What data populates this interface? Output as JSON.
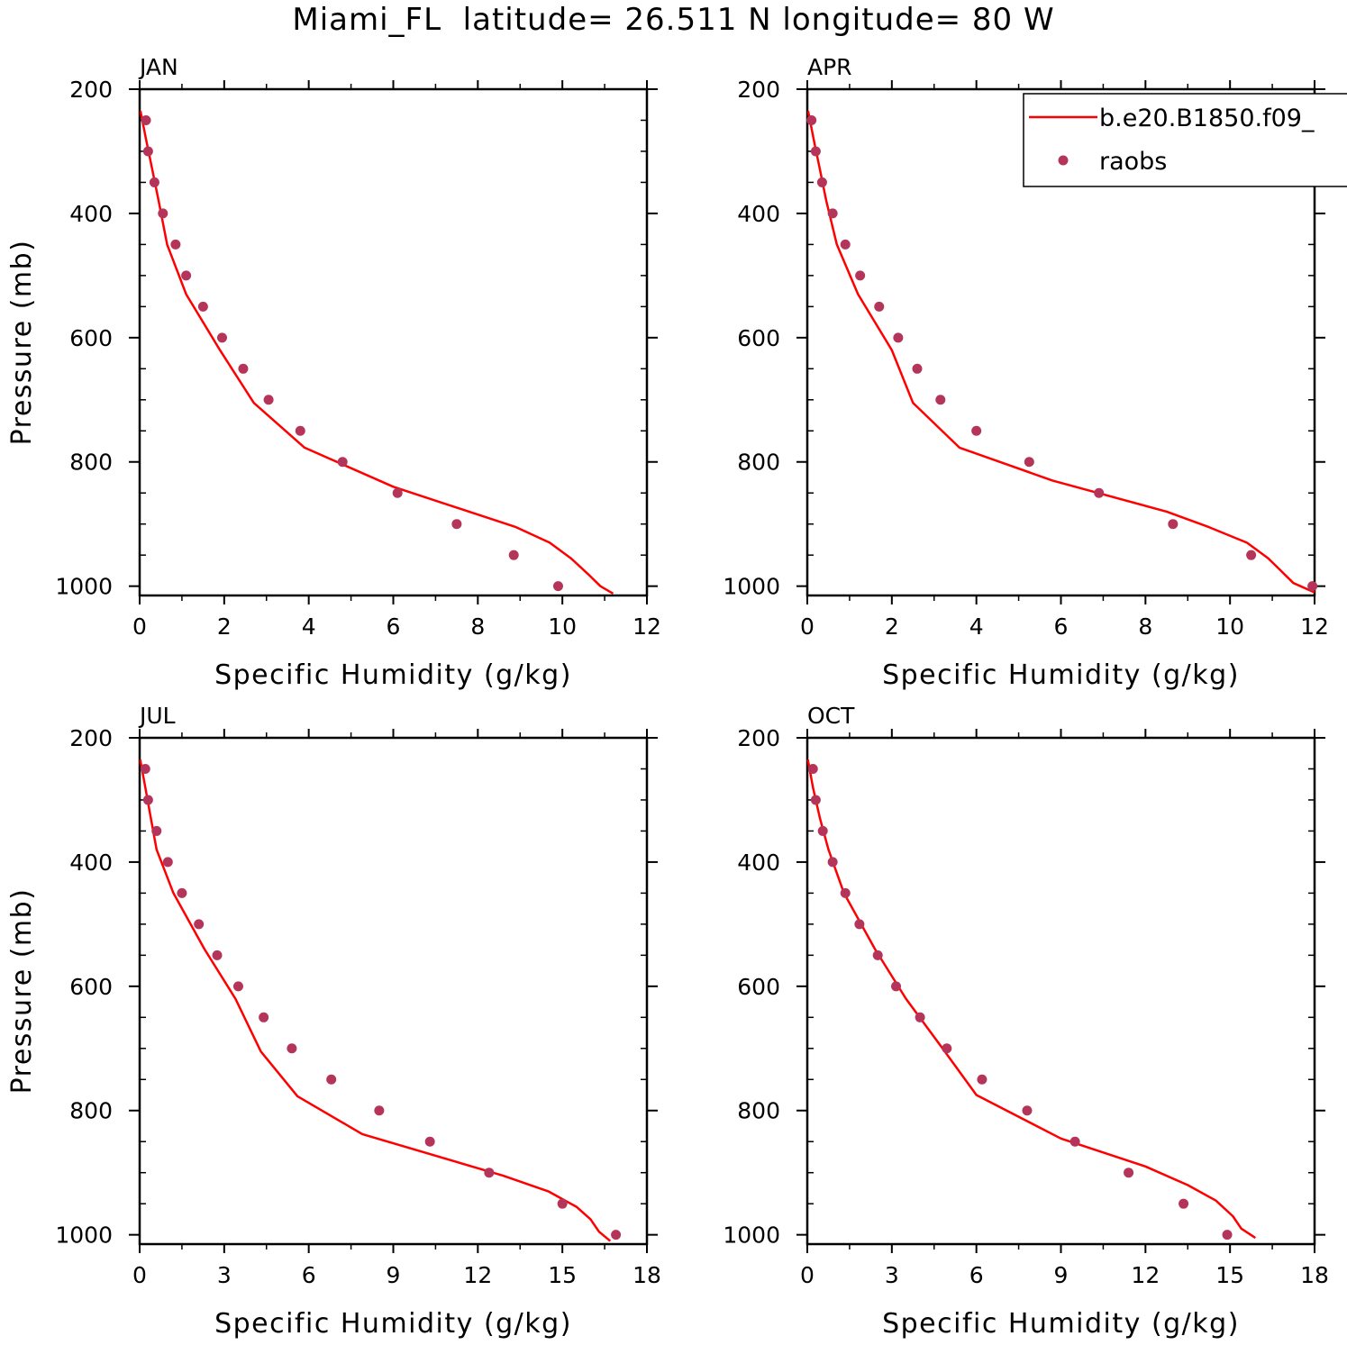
{
  "title": "Miami_FL  latitude= 26.511 N longitude= 80 W",
  "colors": {
    "model_line": "#ff0000",
    "obs_marker": "#b5345a",
    "axis": "#000000"
  },
  "legend": {
    "model_label": "b.e20.B1850.f09_",
    "obs_label": "raobs"
  },
  "chart_data": [
    {
      "type": "line",
      "panel": "JAN",
      "xlabel": "Specific Humidity (g/kg)",
      "ylabel": "Pressure (mb)",
      "xlim": [
        0,
        12
      ],
      "ylim": [
        200,
        1000
      ],
      "y_inverted": false,
      "xticks": [
        0,
        2,
        4,
        6,
        8,
        10,
        12
      ],
      "yticks": [
        200,
        400,
        600,
        800,
        1000
      ],
      "series": [
        {
          "kind": "line",
          "points": [
            [
              0.02,
              235
            ],
            [
              0.15,
              280
            ],
            [
              0.3,
              330
            ],
            [
              0.45,
              380
            ],
            [
              0.65,
              450
            ],
            [
              1.1,
              530
            ],
            [
              1.9,
              620
            ],
            [
              2.7,
              705
            ],
            [
              3.9,
              777
            ],
            [
              6.0,
              840
            ],
            [
              8.9,
              905
            ],
            [
              9.7,
              930
            ],
            [
              10.2,
              955
            ],
            [
              10.6,
              980
            ],
            [
              10.9,
              1000
            ],
            [
              11.2,
              1012
            ]
          ]
        },
        {
          "kind": "scatter",
          "points": [
            [
              0.15,
              250
            ],
            [
              0.2,
              300
            ],
            [
              0.35,
              350
            ],
            [
              0.55,
              400
            ],
            [
              0.85,
              450
            ],
            [
              1.1,
              500
            ],
            [
              1.5,
              550
            ],
            [
              1.95,
              600
            ],
            [
              2.45,
              650
            ],
            [
              3.05,
              700
            ],
            [
              3.8,
              750
            ],
            [
              4.8,
              800
            ],
            [
              6.1,
              850
            ],
            [
              7.5,
              900
            ],
            [
              8.85,
              950
            ],
            [
              9.9,
              1000
            ]
          ]
        }
      ]
    },
    {
      "type": "line",
      "panel": "APR",
      "xlabel": "Specific Humidity (g/kg)",
      "ylabel": "",
      "xlim": [
        0,
        12
      ],
      "ylim": [
        200,
        1000
      ],
      "xticks": [
        0,
        2,
        4,
        6,
        8,
        10,
        12
      ],
      "yticks": [
        200,
        400,
        600,
        800,
        1000
      ],
      "series": [
        {
          "kind": "line",
          "points": [
            [
              0.02,
              235
            ],
            [
              0.15,
              280
            ],
            [
              0.3,
              330
            ],
            [
              0.45,
              380
            ],
            [
              0.7,
              450
            ],
            [
              1.2,
              530
            ],
            [
              2.0,
              620
            ],
            [
              2.5,
              705
            ],
            [
              3.6,
              777
            ],
            [
              5.8,
              830
            ],
            [
              8.5,
              880
            ],
            [
              9.5,
              905
            ],
            [
              10.4,
              930
            ],
            [
              10.9,
              955
            ],
            [
              11.2,
              975
            ],
            [
              11.5,
              995
            ],
            [
              12.0,
              1010
            ]
          ]
        },
        {
          "kind": "scatter",
          "points": [
            [
              0.1,
              250
            ],
            [
              0.2,
              300
            ],
            [
              0.35,
              350
            ],
            [
              0.6,
              400
            ],
            [
              0.9,
              450
            ],
            [
              1.25,
              500
            ],
            [
              1.7,
              550
            ],
            [
              2.15,
              600
            ],
            [
              2.6,
              650
            ],
            [
              3.15,
              700
            ],
            [
              4.0,
              750
            ],
            [
              5.25,
              800
            ],
            [
              6.9,
              850
            ],
            [
              8.65,
              900
            ],
            [
              10.5,
              950
            ],
            [
              11.95,
              1000
            ]
          ]
        }
      ]
    },
    {
      "type": "line",
      "panel": "JUL",
      "xlabel": "Specific Humidity (g/kg)",
      "ylabel": "Pressure (mb)",
      "xlim": [
        0,
        18
      ],
      "ylim": [
        200,
        1000
      ],
      "xticks": [
        0,
        3,
        6,
        9,
        12,
        15,
        18
      ],
      "yticks": [
        200,
        400,
        600,
        800,
        1000
      ],
      "series": [
        {
          "kind": "line",
          "points": [
            [
              0.02,
              235
            ],
            [
              0.2,
              280
            ],
            [
              0.4,
              330
            ],
            [
              0.6,
              380
            ],
            [
              1.2,
              450
            ],
            [
              2.3,
              540
            ],
            [
              3.4,
              620
            ],
            [
              4.3,
              705
            ],
            [
              5.6,
              777
            ],
            [
              7.9,
              838
            ],
            [
              12.9,
              905
            ],
            [
              14.5,
              930
            ],
            [
              15.5,
              955
            ],
            [
              16.0,
              975
            ],
            [
              16.3,
              995
            ],
            [
              16.7,
              1010
            ]
          ]
        },
        {
          "kind": "scatter",
          "points": [
            [
              0.2,
              250
            ],
            [
              0.3,
              300
            ],
            [
              0.6,
              350
            ],
            [
              1.0,
              400
            ],
            [
              1.5,
              450
            ],
            [
              2.1,
              500
            ],
            [
              2.75,
              550
            ],
            [
              3.5,
              600
            ],
            [
              4.4,
              650
            ],
            [
              5.4,
              700
            ],
            [
              6.8,
              750
            ],
            [
              8.5,
              800
            ],
            [
              10.3,
              850
            ],
            [
              12.4,
              900
            ],
            [
              15.0,
              950
            ],
            [
              16.9,
              1000
            ]
          ]
        }
      ]
    },
    {
      "type": "line",
      "panel": "OCT",
      "xlabel": "Specific Humidity (g/kg)",
      "ylabel": "",
      "xlim": [
        0,
        18
      ],
      "ylim": [
        200,
        1000
      ],
      "xticks": [
        0,
        3,
        6,
        9,
        12,
        15,
        18
      ],
      "yticks": [
        200,
        400,
        600,
        800,
        1000
      ],
      "series": [
        {
          "kind": "line",
          "points": [
            [
              0.02,
              235
            ],
            [
              0.2,
              280
            ],
            [
              0.45,
              330
            ],
            [
              0.75,
              380
            ],
            [
              1.3,
              450
            ],
            [
              2.4,
              540
            ],
            [
              3.5,
              620
            ],
            [
              4.8,
              700
            ],
            [
              6.0,
              775
            ],
            [
              9.0,
              845
            ],
            [
              12.0,
              890
            ],
            [
              13.5,
              920
            ],
            [
              14.5,
              945
            ],
            [
              15.1,
              970
            ],
            [
              15.4,
              990
            ],
            [
              15.9,
              1005
            ]
          ]
        },
        {
          "kind": "scatter",
          "points": [
            [
              0.2,
              250
            ],
            [
              0.3,
              300
            ],
            [
              0.55,
              350
            ],
            [
              0.9,
              400
            ],
            [
              1.35,
              450
            ],
            [
              1.85,
              500
            ],
            [
              2.5,
              550
            ],
            [
              3.15,
              600
            ],
            [
              4.0,
              650
            ],
            [
              4.95,
              700
            ],
            [
              6.2,
              750
            ],
            [
              7.8,
              800
            ],
            [
              9.5,
              850
            ],
            [
              11.4,
              900
            ],
            [
              13.35,
              950
            ],
            [
              14.9,
              1000
            ]
          ]
        }
      ]
    }
  ]
}
